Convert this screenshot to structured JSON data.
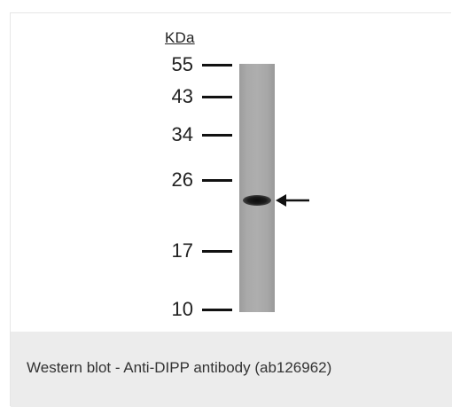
{
  "figure": {
    "unit_label": "KDa",
    "markers": [
      {
        "label": "55"
      },
      {
        "label": "43"
      },
      {
        "label": "34"
      },
      {
        "label": "26"
      },
      {
        "label": "17"
      },
      {
        "label": "10"
      }
    ]
  },
  "caption": "Western blot - Anti-DIPP antibody (ab126962)"
}
